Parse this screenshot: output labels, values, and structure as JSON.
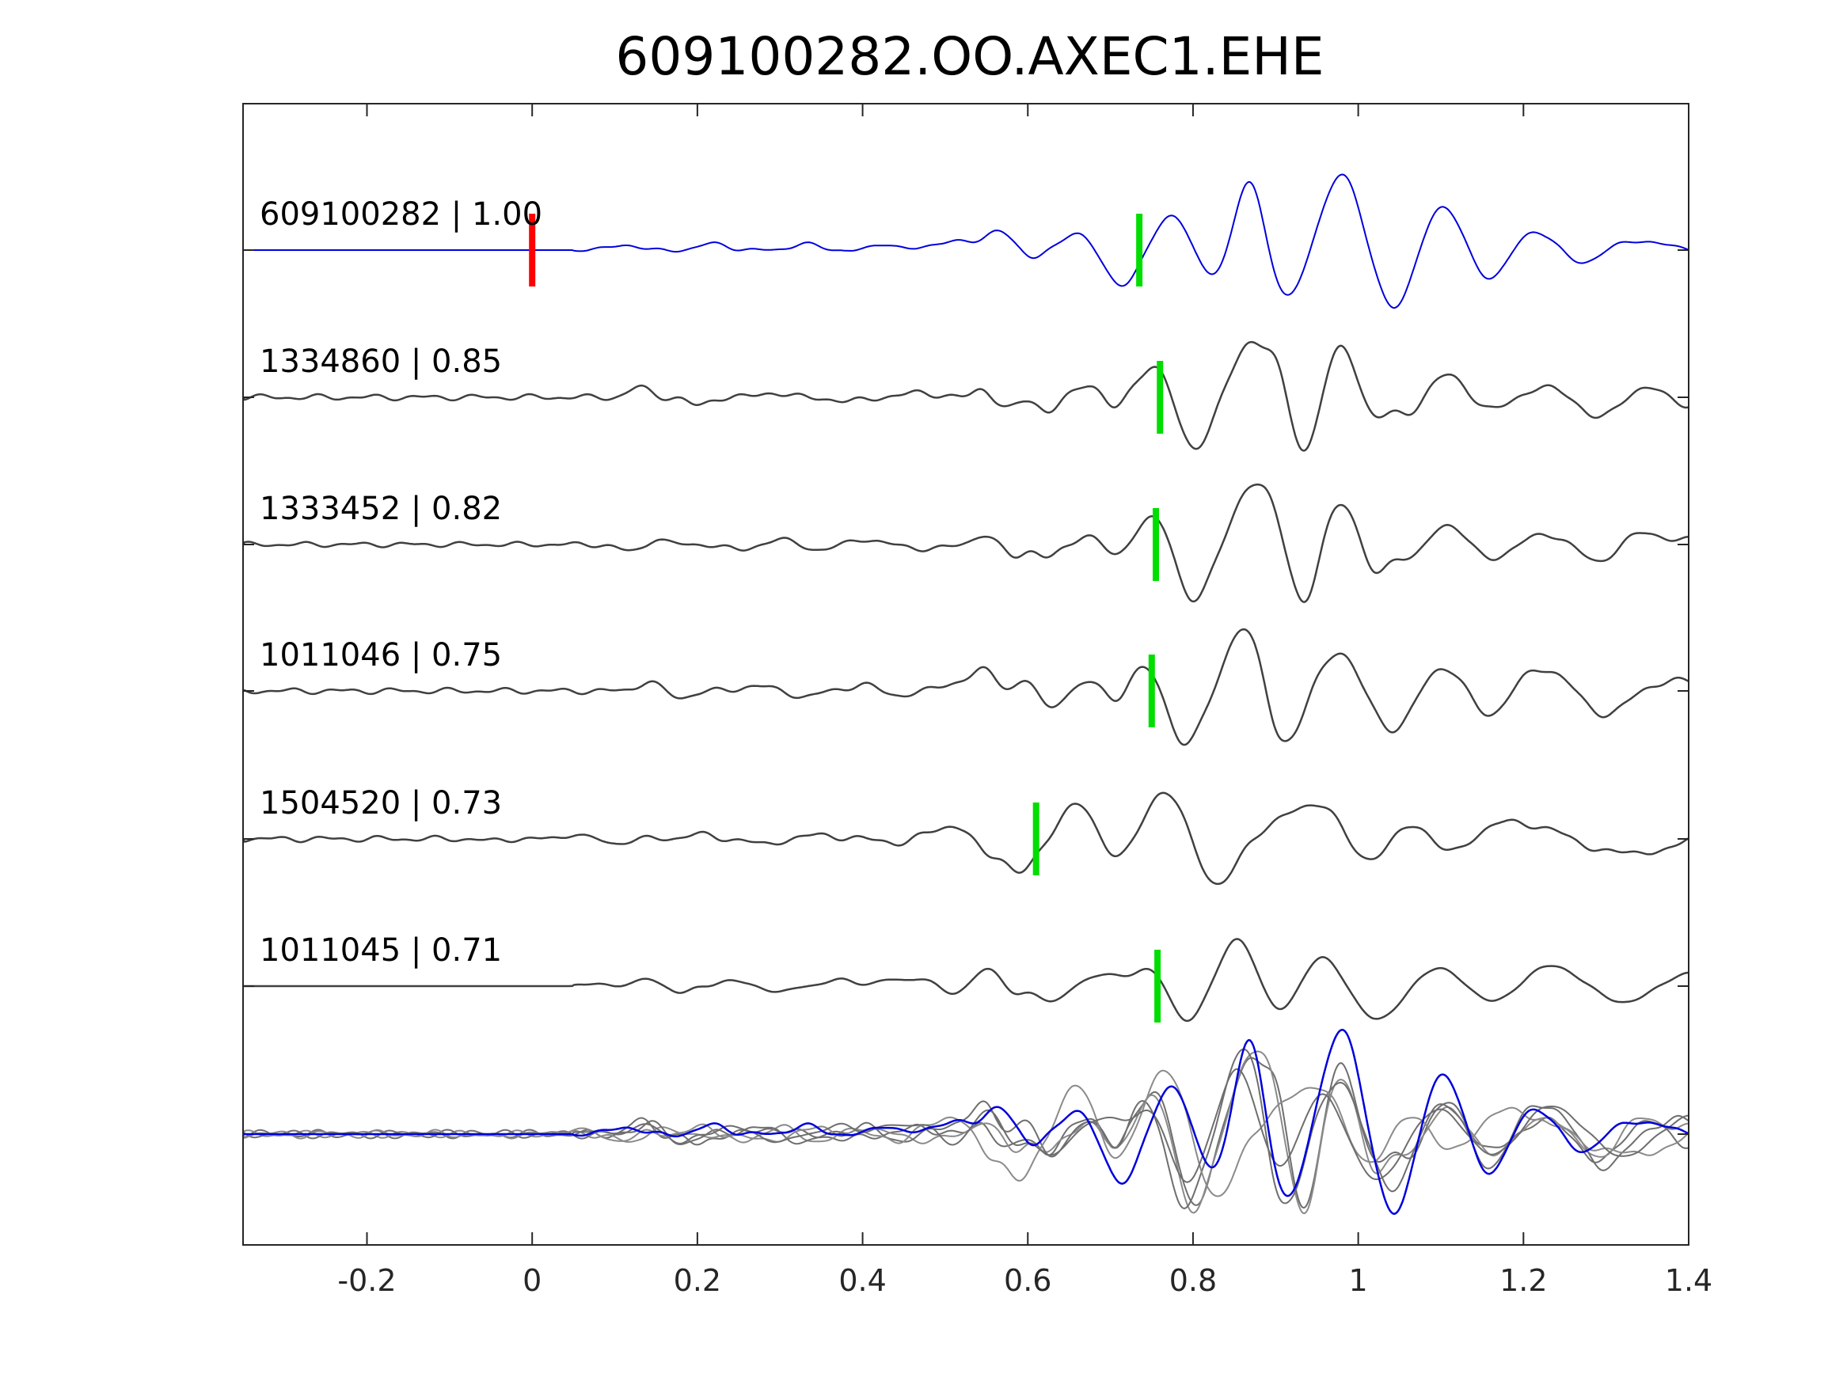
{
  "chart_data": {
    "type": "line",
    "title": "609100282.OO.AXEC1.EHE",
    "xlabel": "",
    "ylabel": "",
    "xlim": [
      -0.35,
      1.4
    ],
    "x_ticks": [
      -0.2,
      0,
      0.2,
      0.4,
      0.6,
      0.8,
      1,
      1.2,
      1.4
    ],
    "x_tick_labels": [
      "-0.2",
      "0",
      "0.2",
      "0.4",
      "0.6",
      "0.8",
      "1",
      "1.2",
      "1.4"
    ],
    "grid": false,
    "reference_pick": {
      "x": 0.0,
      "color": "#ff0000"
    },
    "pick_color": "#00dd00",
    "traces": [
      {
        "label": "609100282 | 1.00",
        "color": "#0000dd",
        "pick": 0.735,
        "onset": 0.05,
        "noise": 0.04,
        "peaks": [
          [
            0.11,
            0.12,
            0.015
          ],
          [
            0.22,
            0.15,
            0.015
          ],
          [
            0.33,
            0.14,
            0.015
          ],
          [
            0.43,
            0.13,
            0.015
          ],
          [
            0.51,
            0.22,
            0.02
          ],
          [
            0.565,
            0.45,
            0.015
          ],
          [
            0.605,
            -0.2,
            0.012
          ],
          [
            0.66,
            0.35,
            0.02
          ],
          [
            0.715,
            -0.8,
            0.02
          ],
          [
            0.775,
            0.8,
            0.022
          ],
          [
            0.82,
            -0.6,
            0.02
          ],
          [
            0.868,
            1.55,
            0.016
          ],
          [
            0.915,
            -1.05,
            0.018
          ],
          [
            0.98,
            1.65,
            0.022
          ],
          [
            1.045,
            -1.35,
            0.022
          ],
          [
            1.1,
            1.0,
            0.024
          ],
          [
            1.16,
            -0.7,
            0.022
          ],
          [
            1.21,
            0.45,
            0.024
          ],
          [
            1.27,
            -0.3,
            0.02
          ],
          [
            1.34,
            0.2,
            0.03
          ]
        ]
      },
      {
        "label": "1334860 | 0.85",
        "color": "#404040",
        "pick": 0.76,
        "onset": -0.35,
        "noise": 0.07,
        "peaks": [
          [
            0.13,
            0.22,
            0.012
          ],
          [
            0.2,
            -0.18,
            0.012
          ],
          [
            0.29,
            0.1,
            0.015
          ],
          [
            0.38,
            -0.1,
            0.015
          ],
          [
            0.47,
            0.12,
            0.015
          ],
          [
            0.545,
            0.2,
            0.01
          ],
          [
            0.575,
            -0.25,
            0.012
          ],
          [
            0.625,
            -0.3,
            0.012
          ],
          [
            0.675,
            0.3,
            0.015
          ],
          [
            0.705,
            -0.3,
            0.012
          ],
          [
            0.755,
            0.75,
            0.02
          ],
          [
            0.8,
            -1.15,
            0.02
          ],
          [
            0.87,
            1.2,
            0.02
          ],
          [
            0.9,
            0.5,
            0.012
          ],
          [
            0.935,
            -1.2,
            0.015
          ],
          [
            0.98,
            1.1,
            0.018
          ],
          [
            1.02,
            -0.5,
            0.015
          ],
          [
            1.06,
            -0.35,
            0.015
          ],
          [
            1.11,
            0.5,
            0.02
          ],
          [
            1.16,
            -0.3,
            0.02
          ],
          [
            1.23,
            0.2,
            0.03
          ],
          [
            1.29,
            -0.5,
            0.02
          ],
          [
            1.35,
            0.2,
            0.025
          ],
          [
            1.4,
            -0.2,
            0.02
          ]
        ]
      },
      {
        "label": "1333452 | 0.82",
        "color": "#404040",
        "pick": 0.755,
        "onset": -0.35,
        "noise": 0.06,
        "peaks": [
          [
            0.12,
            -0.15,
            0.015
          ],
          [
            0.15,
            0.15,
            0.01
          ],
          [
            0.25,
            -0.12,
            0.015
          ],
          [
            0.3,
            0.1,
            0.015
          ],
          [
            0.35,
            -0.12,
            0.015
          ],
          [
            0.4,
            0.12,
            0.015
          ],
          [
            0.48,
            -0.1,
            0.02
          ],
          [
            0.545,
            0.2,
            0.012
          ],
          [
            0.585,
            -0.25,
            0.012
          ],
          [
            0.625,
            -0.3,
            0.012
          ],
          [
            0.675,
            0.2,
            0.015
          ],
          [
            0.705,
            -0.3,
            0.012
          ],
          [
            0.755,
            0.65,
            0.02
          ],
          [
            0.8,
            -1.25,
            0.02
          ],
          [
            0.87,
            1.25,
            0.02
          ],
          [
            0.895,
            0.4,
            0.012
          ],
          [
            0.935,
            -1.3,
            0.015
          ],
          [
            0.98,
            0.95,
            0.018
          ],
          [
            1.02,
            -0.7,
            0.015
          ],
          [
            1.065,
            -0.3,
            0.015
          ],
          [
            1.11,
            0.45,
            0.02
          ],
          [
            1.16,
            -0.35,
            0.02
          ],
          [
            1.23,
            0.2,
            0.03
          ],
          [
            1.29,
            -0.45,
            0.02
          ],
          [
            1.34,
            0.25,
            0.025
          ],
          [
            1.4,
            0.1,
            0.02
          ]
        ]
      },
      {
        "label": "1011046 | 0.75",
        "color": "#404040",
        "pick": 0.75,
        "onset": -0.35,
        "noise": 0.07,
        "peaks": [
          [
            0.14,
            0.2,
            0.012
          ],
          [
            0.18,
            -0.15,
            0.012
          ],
          [
            0.27,
            0.12,
            0.015
          ],
          [
            0.33,
            -0.12,
            0.015
          ],
          [
            0.4,
            0.15,
            0.015
          ],
          [
            0.44,
            -0.1,
            0.015
          ],
          [
            0.51,
            0.15,
            0.015
          ],
          [
            0.545,
            0.45,
            0.015
          ],
          [
            0.6,
            0.25,
            0.012
          ],
          [
            0.625,
            -0.4,
            0.012
          ],
          [
            0.68,
            0.2,
            0.015
          ],
          [
            0.705,
            -0.3,
            0.012
          ],
          [
            0.745,
            0.55,
            0.02
          ],
          [
            0.79,
            -1.2,
            0.02
          ],
          [
            0.86,
            1.35,
            0.02
          ],
          [
            0.9,
            -0.6,
            0.012
          ],
          [
            0.92,
            -0.9,
            0.015
          ],
          [
            0.975,
            0.85,
            0.02
          ],
          [
            1.045,
            -0.9,
            0.022
          ],
          [
            1.1,
            0.55,
            0.025
          ],
          [
            1.16,
            -0.6,
            0.022
          ],
          [
            1.22,
            0.5,
            0.03
          ],
          [
            1.3,
            -0.55,
            0.025
          ],
          [
            1.36,
            0.15,
            0.03
          ],
          [
            1.4,
            0.15,
            0.02
          ]
        ]
      },
      {
        "label": "1504520 | 0.73",
        "color": "#404040",
        "pick": 0.61,
        "onset": -0.35,
        "noise": 0.07,
        "peaks": [
          [
            -0.05,
            -0.05,
            0.01
          ],
          [
            0.05,
            0.12,
            0.01
          ],
          [
            0.1,
            -0.1,
            0.012
          ],
          [
            0.2,
            0.1,
            0.015
          ],
          [
            0.28,
            -0.12,
            0.015
          ],
          [
            0.35,
            0.1,
            0.015
          ],
          [
            0.45,
            -0.12,
            0.015
          ],
          [
            0.48,
            0.15,
            0.015
          ],
          [
            0.51,
            0.25,
            0.015
          ],
          [
            0.55,
            -0.25,
            0.012
          ],
          [
            0.59,
            -0.75,
            0.018
          ],
          [
            0.66,
            0.75,
            0.02
          ],
          [
            0.71,
            -0.45,
            0.018
          ],
          [
            0.765,
            1.05,
            0.022
          ],
          [
            0.83,
            -1.0,
            0.022
          ],
          [
            0.92,
            0.5,
            0.03
          ],
          [
            0.96,
            0.55,
            0.02
          ],
          [
            1.01,
            -0.45,
            0.022
          ],
          [
            1.07,
            0.35,
            0.02
          ],
          [
            1.11,
            -0.35,
            0.02
          ],
          [
            1.18,
            0.35,
            0.03
          ],
          [
            1.24,
            0.15,
            0.03
          ],
          [
            1.3,
            -0.3,
            0.03
          ],
          [
            1.37,
            -0.3,
            0.025
          ],
          [
            1.4,
            0.2,
            0.015
          ]
        ]
      },
      {
        "label": "1011045 | 0.71",
        "color": "#404040",
        "pick": 0.757,
        "onset": 0.05,
        "noise": 0.03,
        "peaks": [
          [
            0.08,
            0.06,
            0.012
          ],
          [
            0.14,
            0.17,
            0.012
          ],
          [
            0.18,
            -0.15,
            0.012
          ],
          [
            0.24,
            0.12,
            0.015
          ],
          [
            0.3,
            -0.12,
            0.015
          ],
          [
            0.37,
            0.15,
            0.015
          ],
          [
            0.43,
            0.15,
            0.015
          ],
          [
            0.475,
            0.18,
            0.015
          ],
          [
            0.51,
            -0.2,
            0.015
          ],
          [
            0.55,
            0.4,
            0.015
          ],
          [
            0.585,
            -0.2,
            0.012
          ],
          [
            0.63,
            -0.35,
            0.015
          ],
          [
            0.69,
            0.25,
            0.02
          ],
          [
            0.75,
            0.45,
            0.02
          ],
          [
            0.79,
            -0.8,
            0.02
          ],
          [
            0.855,
            1.05,
            0.02
          ],
          [
            0.905,
            -0.6,
            0.02
          ],
          [
            0.955,
            0.65,
            0.022
          ],
          [
            1.025,
            -0.75,
            0.025
          ],
          [
            1.1,
            0.4,
            0.03
          ],
          [
            1.16,
            -0.4,
            0.025
          ],
          [
            1.235,
            0.45,
            0.03
          ],
          [
            1.32,
            -0.35,
            0.03
          ],
          [
            1.4,
            0.3,
            0.025
          ]
        ]
      }
    ]
  }
}
